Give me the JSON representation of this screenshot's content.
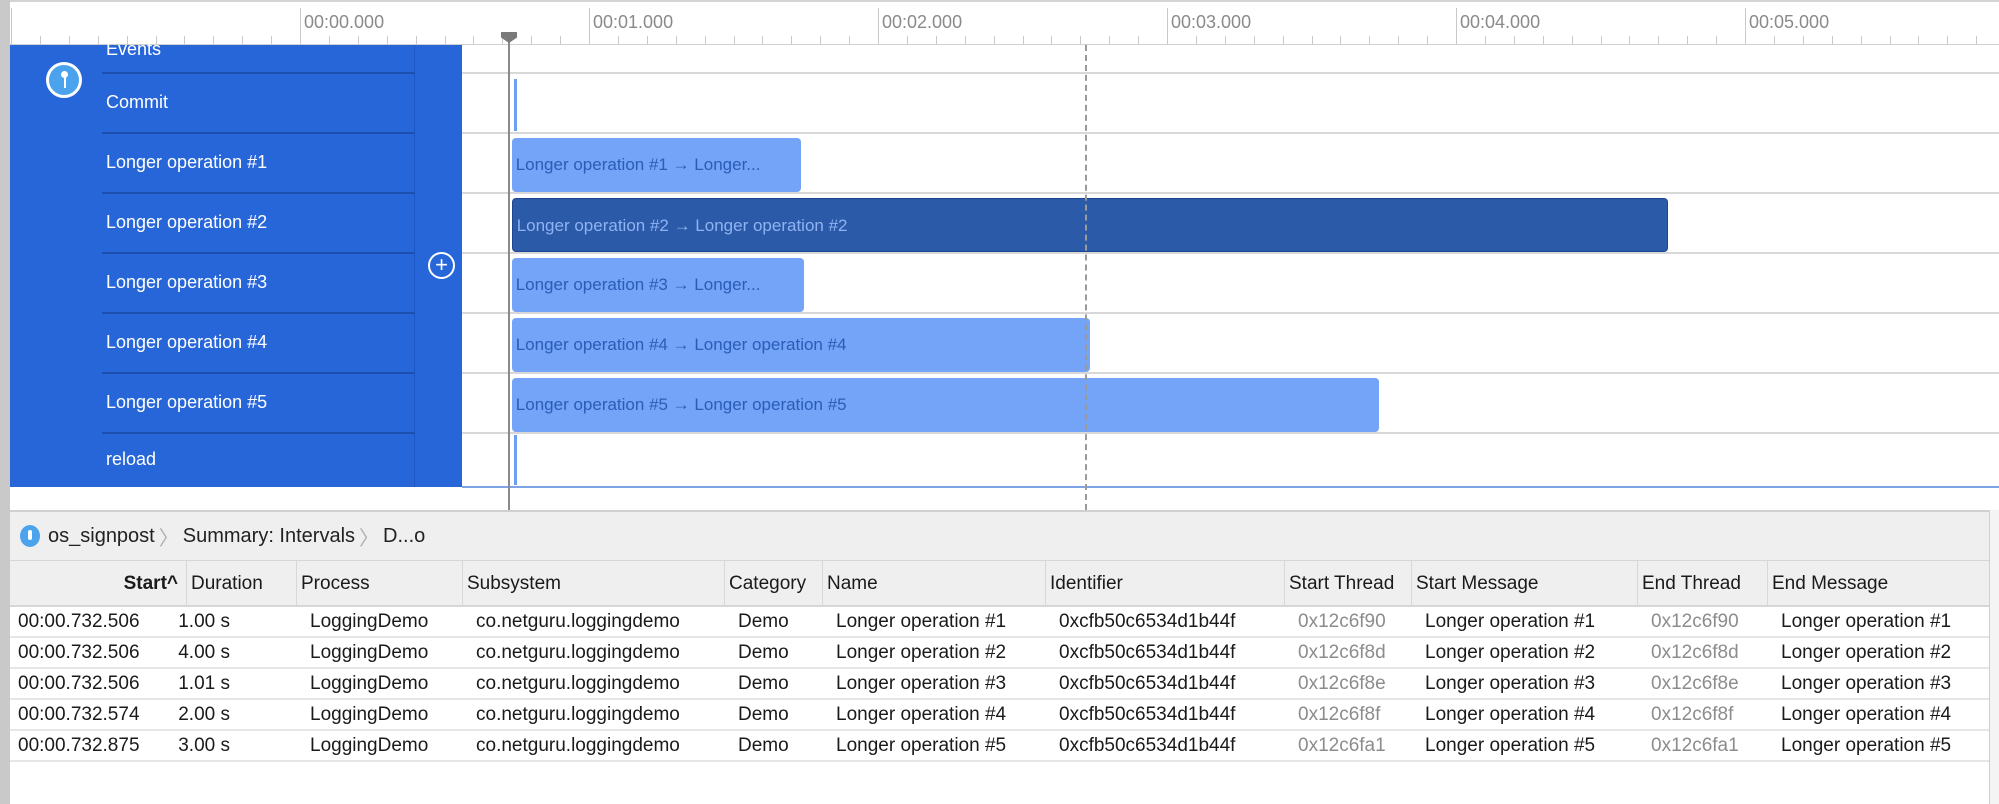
{
  "ruler": {
    "labels": [
      "00:00.000",
      "00:01.000",
      "00:02.000",
      "00:03.000",
      "00:04.000",
      "00:05.000"
    ]
  },
  "track": {
    "icon": "signpost-pin-icon",
    "add_icon": "plus-circle-icon",
    "lanes": [
      "Events",
      "Commit",
      "Longer operation #1",
      "Longer operation #2",
      "Longer operation #3",
      "Longer operation #4",
      "Longer operation #5",
      "reload"
    ]
  },
  "intervals": [
    {
      "label": "Longer operation #1 → Longer...",
      "start_s": 0.732506,
      "duration_s": 1.0,
      "selected": false
    },
    {
      "label": "Longer operation #2 → Longer operation #2",
      "start_s": 0.732506,
      "duration_s": 4.0,
      "selected": true
    },
    {
      "label": "Longer operation #3 → Longer...",
      "start_s": 0.732506,
      "duration_s": 1.01,
      "selected": false
    },
    {
      "label": "Longer operation #4 → Longer operation #4",
      "start_s": 0.732574,
      "duration_s": 2.0,
      "selected": false
    },
    {
      "label": "Longer operation #5 → Longer operation #5",
      "start_s": 0.732875,
      "duration_s": 3.0,
      "selected": false
    }
  ],
  "colors": {
    "track_bg": "#2766d9",
    "bar": "#73a4f7",
    "bar_selected": "#2b5aa8"
  },
  "breadcrumb": [
    "os_signpost",
    "Summary: Intervals",
    "D...o"
  ],
  "table": {
    "headers": [
      "Start^",
      "Duration",
      "Process",
      "Subsystem",
      "Category",
      "Name",
      "Identifier",
      "Start Thread",
      "Start Message",
      "End Thread",
      "End Message"
    ],
    "rows": [
      [
        "00:00.732.506",
        "1.00 s",
        "LoggingDemo",
        "co.netguru.loggingdemo",
        "Demo",
        "Longer operation #1",
        "0xcfb50c6534d1b44f",
        "0x12c6f90",
        "Longer operation #1",
        "0x12c6f90",
        "Longer operation #1"
      ],
      [
        "00:00.732.506",
        "4.00 s",
        "LoggingDemo",
        "co.netguru.loggingdemo",
        "Demo",
        "Longer operation #2",
        "0xcfb50c6534d1b44f",
        "0x12c6f8d",
        "Longer operation #2",
        "0x12c6f8d",
        "Longer operation #2"
      ],
      [
        "00:00.732.506",
        "1.01 s",
        "LoggingDemo",
        "co.netguru.loggingdemo",
        "Demo",
        "Longer operation #3",
        "0xcfb50c6534d1b44f",
        "0x12c6f8e",
        "Longer operation #3",
        "0x12c6f8e",
        "Longer operation #3"
      ],
      [
        "00:00.732.574",
        "2.00 s",
        "LoggingDemo",
        "co.netguru.loggingdemo",
        "Demo",
        "Longer operation #4",
        "0xcfb50c6534d1b44f",
        "0x12c6f8f",
        "Longer operation #4",
        "0x12c6f8f",
        "Longer operation #4"
      ],
      [
        "00:00.732.875",
        "3.00 s",
        "LoggingDemo",
        "co.netguru.loggingdemo",
        "Demo",
        "Longer operation #5",
        "0xcfb50c6534d1b44f",
        "0x12c6fa1",
        "Longer operation #5",
        "0x12c6fa1",
        "Longer operation #5"
      ]
    ]
  }
}
